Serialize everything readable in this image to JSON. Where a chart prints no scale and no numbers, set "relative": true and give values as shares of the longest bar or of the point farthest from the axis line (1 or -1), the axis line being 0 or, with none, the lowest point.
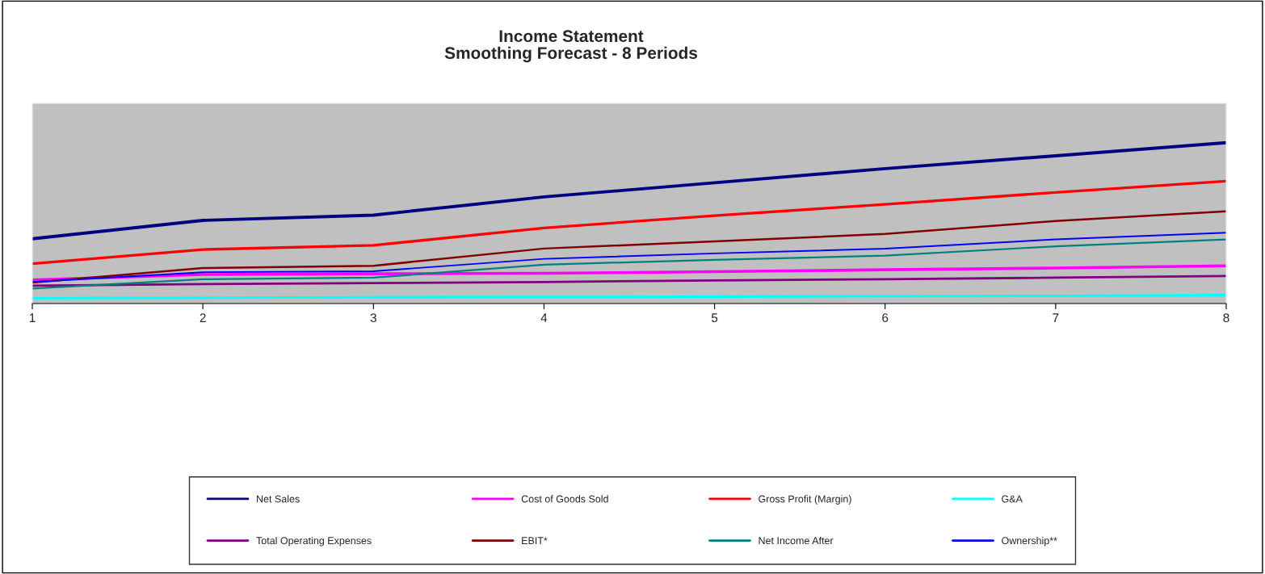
{
  "chart_data": {
    "type": "line",
    "title": "Income Statement",
    "subtitle": "Smoothing Forecast - 8 Periods",
    "x": [
      1,
      2,
      3,
      4,
      5,
      6,
      7,
      8
    ],
    "xlim": [
      1,
      8
    ],
    "xticks": [
      1,
      2,
      3,
      4,
      5,
      6,
      7,
      8
    ],
    "relative": true,
    "grid": false,
    "legend": "bottom",
    "marker": "none",
    "line_style": "solid",
    "series": [
      {
        "name": "Net Sales",
        "color": "#000080",
        "values": [
          0.403,
          0.517,
          0.55,
          0.663,
          0.751,
          0.839,
          0.919,
          1
        ]
      },
      {
        "name": "Cost of Goods Sold",
        "color": "#ff00ff",
        "values": [
          0.147,
          0.181,
          0.185,
          0.188,
          0.198,
          0.21,
          0.221,
          0.235
        ]
      },
      {
        "name": "Gross Profit (Margin)",
        "color": "#ff0000",
        "values": [
          0.248,
          0.336,
          0.362,
          0.47,
          0.547,
          0.617,
          0.691,
          0.761
        ]
      },
      {
        "name": "G&A",
        "color": "#00ffff",
        "values": [
          0.034,
          0.036,
          0.039,
          0.041,
          0.043,
          0.046,
          0.048,
          0.052
        ]
      },
      {
        "name": "Total Operating Expenses",
        "color": "#800080",
        "values": [
          0.111,
          0.121,
          0.127,
          0.134,
          0.144,
          0.151,
          0.161,
          0.171
        ]
      },
      {
        "name": "EBIT*",
        "color": "#800000",
        "values": [
          0.131,
          0.221,
          0.235,
          0.342,
          0.386,
          0.433,
          0.513,
          0.574
        ]
      },
      {
        "name": "Net Income After",
        "color": "#008080",
        "values": [
          0.094,
          0.151,
          0.161,
          0.242,
          0.272,
          0.298,
          0.356,
          0.399
        ]
      },
      {
        "name": "Ownership**",
        "color": "#0000ff",
        "values": [
          0.134,
          0.195,
          0.201,
          0.278,
          0.312,
          0.341,
          0.399,
          0.441
        ]
      }
    ]
  }
}
